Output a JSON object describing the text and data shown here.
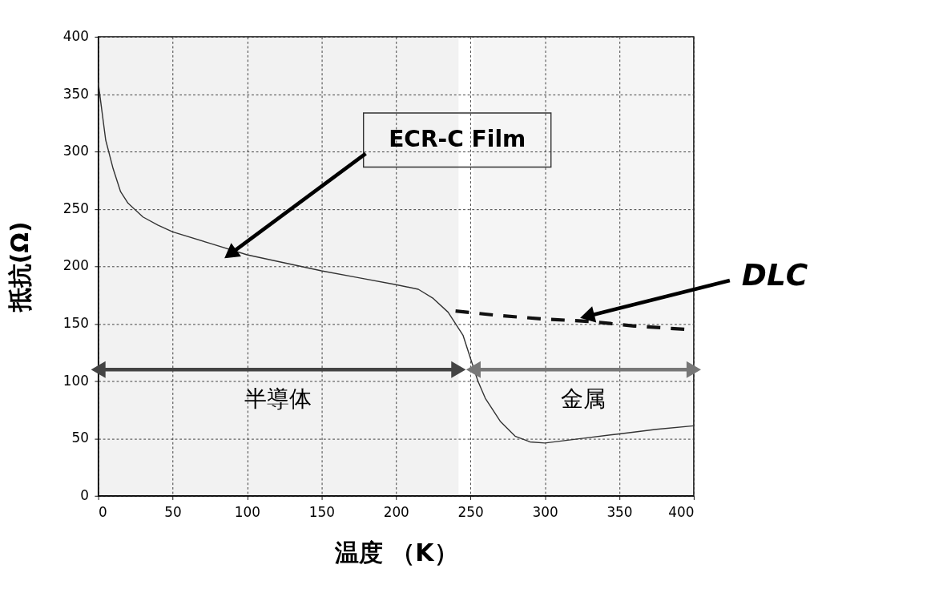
{
  "chart_data": {
    "type": "line",
    "xlabel": "温度 （K）",
    "ylabel": "抵抗(Ω)",
    "xlim": [
      0,
      400
    ],
    "ylim": [
      0,
      400
    ],
    "xticks": [
      0,
      50,
      100,
      150,
      200,
      250,
      300,
      350,
      400
    ],
    "yticks": [
      0,
      50,
      100,
      150,
      200,
      250,
      300,
      350,
      400
    ],
    "grid": true,
    "series": [
      {
        "color": "#333333",
        "line_style": "solid",
        "x": [
          0,
          2,
          5,
          10,
          15,
          20,
          30,
          40,
          50,
          75,
          100,
          125,
          150,
          175,
          200,
          215,
          225,
          235,
          245,
          250,
          255,
          260,
          270,
          280,
          290,
          300,
          325,
          350,
          375,
          400
        ],
        "values": [
          360,
          340,
          310,
          285,
          265,
          255,
          243,
          236,
          230,
          220,
          210,
          203,
          196,
          190,
          184,
          180,
          172,
          160,
          140,
          120,
          100,
          85,
          65,
          52,
          47,
          46,
          50,
          54,
          58,
          61
        ]
      },
      {
        "color": "#111111",
        "line_style": "dashed",
        "x": [
          240,
          270,
          300,
          330,
          360,
          395
        ],
        "values": [
          161,
          157,
          154,
          152,
          148,
          145
        ]
      }
    ],
    "annotations": [
      {
        "text": "ECR-C Film",
        "x": 90,
        "y": 212
      },
      {
        "text": "DLC",
        "x": 330,
        "y": 157
      }
    ],
    "bands": [
      {
        "axis": "x",
        "from": 0,
        "to": 242,
        "label": "半導体",
        "color": "#444444"
      },
      {
        "axis": "x",
        "from": 252,
        "to": 400,
        "label": "金属",
        "color": "#777777"
      }
    ]
  }
}
